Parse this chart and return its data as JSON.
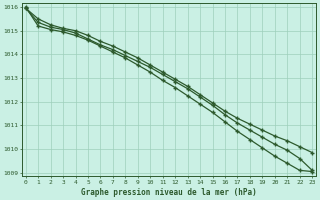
{
  "title": "Graphe pression niveau de la mer (hPa)",
  "bg_color": "#caf0e4",
  "grid_color": "#9ecfbb",
  "line_color": "#2d5a2d",
  "ylim": [
    1009,
    1016
  ],
  "yticks": [
    1009,
    1010,
    1011,
    1012,
    1013,
    1014,
    1015,
    1016
  ],
  "x_labels": [
    "0",
    "1",
    "2",
    "3",
    "4",
    "5",
    "6",
    "7",
    "8",
    "9",
    "10",
    "11",
    "12",
    "13",
    "14",
    "15",
    "16",
    "17",
    "18",
    "19",
    "20",
    "21",
    "22",
    "23"
  ],
  "series1": [
    1015.95,
    1015.5,
    1015.25,
    1015.1,
    1015.0,
    1014.8,
    1014.55,
    1014.35,
    1014.1,
    1013.85,
    1013.55,
    1013.25,
    1012.95,
    1012.65,
    1012.3,
    1011.95,
    1011.6,
    1011.3,
    1011.05,
    1010.8,
    1010.55,
    1010.35,
    1010.1,
    1009.85
  ],
  "series2": [
    1015.95,
    1015.35,
    1015.15,
    1015.05,
    1014.9,
    1014.65,
    1014.4,
    1014.2,
    1013.95,
    1013.7,
    1013.45,
    1013.15,
    1012.85,
    1012.55,
    1012.2,
    1011.85,
    1011.45,
    1011.1,
    1010.8,
    1010.5,
    1010.2,
    1009.95,
    1009.6,
    1009.1
  ],
  "series3": [
    1016.0,
    1015.2,
    1015.05,
    1014.95,
    1014.8,
    1014.6,
    1014.35,
    1014.1,
    1013.85,
    1013.55,
    1013.25,
    1012.9,
    1012.6,
    1012.25,
    1011.9,
    1011.55,
    1011.15,
    1010.75,
    1010.4,
    1010.05,
    1009.7,
    1009.4,
    1009.1,
    1009.05
  ]
}
